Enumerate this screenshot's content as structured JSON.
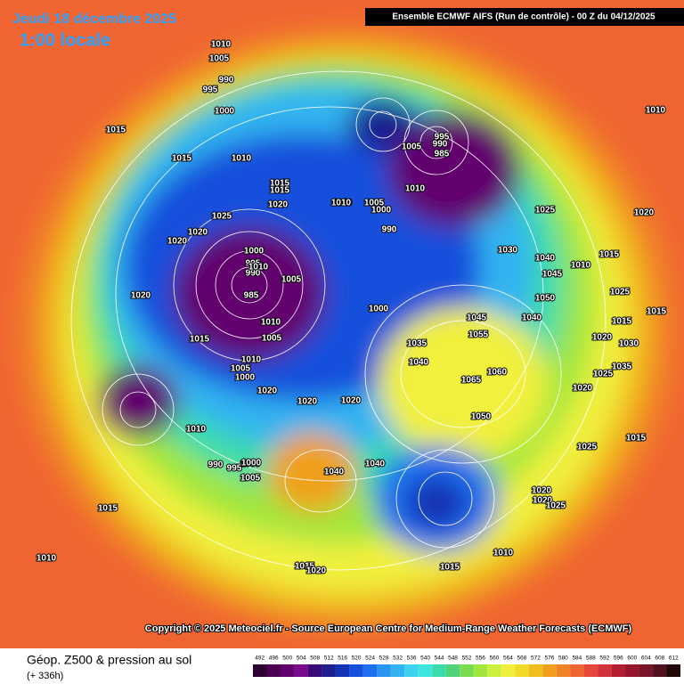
{
  "header": {
    "date": "Jeudi 18 décembre 2025",
    "time": "1:00 locale",
    "model": "Ensemble ECMWF AIFS  (Run de contrôle)  -  00 Z du 04/12/2025"
  },
  "copyright": "Copyright © 2025 Meteociel.fr - Source European Centre for Medium-Range Weather Forecasts (ECMWF)",
  "footer": {
    "title": "Géop. Z500 & pression au sol",
    "lead": "(+ 336h)"
  },
  "isobar_labels": [
    "1010",
    "1005",
    "990",
    "995",
    "1000",
    "1015",
    "1010",
    "1015",
    "1015",
    "1010",
    "1020",
    "1015",
    "1020",
    "1000",
    "995",
    "990",
    "985",
    "1005",
    "1010",
    "1015",
    "1010",
    "1005",
    "1000",
    "1020",
    "995",
    "990",
    "985",
    "1005",
    "1010",
    "990",
    "1000",
    "1005",
    "1020",
    "1010",
    "1020",
    "1025",
    "1000",
    "1040",
    "1000",
    "1010",
    "1005",
    "990",
    "995",
    "1000",
    "1005",
    "1010",
    "1020",
    "1020",
    "1025",
    "1030",
    "1040",
    "1050",
    "1045",
    "1040",
    "1045",
    "1055",
    "1060",
    "1065",
    "1050",
    "1040",
    "1035",
    "1020",
    "1025",
    "1030",
    "1035",
    "1025",
    "1015",
    "1020",
    "1020",
    "1025",
    "1015",
    "1040",
    "1010",
    "1015",
    "1020",
    "1015",
    "1010",
    "1025",
    "1015",
    "1020",
    "1015",
    "1020",
    "1010",
    "1015",
    "1010"
  ],
  "legend": {
    "ticks": [
      492,
      496,
      500,
      504,
      508,
      512,
      516,
      520,
      524,
      528,
      532,
      536,
      540,
      544,
      548,
      552,
      556,
      560,
      564,
      568,
      572,
      576,
      580,
      584,
      588,
      592,
      596,
      600,
      604,
      608,
      612
    ],
    "colors": [
      "#2d0032",
      "#4b0052",
      "#62006e",
      "#7a0a8c",
      "#3c0a78",
      "#1e1e8c",
      "#1432b4",
      "#1450dc",
      "#1e6ef0",
      "#2896f0",
      "#32b4f0",
      "#3cd2f0",
      "#3ce6dc",
      "#3cdcaa",
      "#50d278",
      "#78dc50",
      "#a0e63c",
      "#c8f03c",
      "#f0f03c",
      "#f0dc28",
      "#f0be1e",
      "#f0a01e",
      "#f08228",
      "#f06432",
      "#e6463c",
      "#d2323c",
      "#b41e32",
      "#96142d",
      "#781428",
      "#501020",
      "#200808"
    ]
  }
}
